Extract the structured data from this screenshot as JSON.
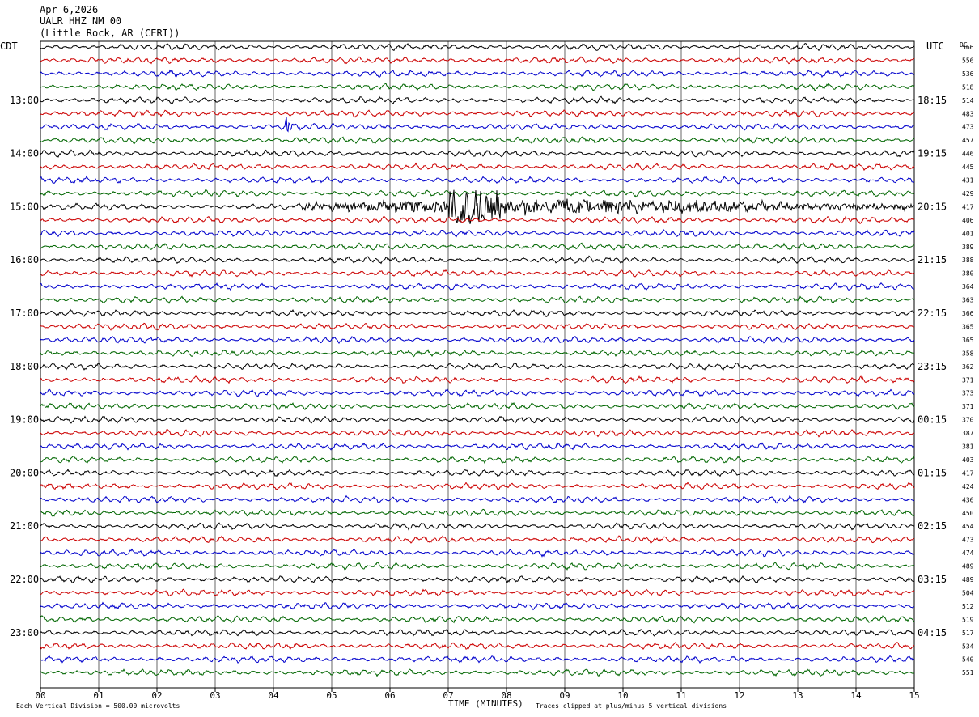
{
  "header": {
    "date": "Apr 6,2026",
    "station": "UALR HHZ NM 00",
    "location": "(Little Rock, AR (CERI))"
  },
  "left_zone": "CDT",
  "right_zone": "UTC",
  "dc_label": "DC",
  "footer": {
    "scale": "Each Vertical Division =  500.00 microvolts",
    "xlabel": "TIME (MINUTES)",
    "clip_note": "Traces clipped at plus/minus 5 vertical divisions"
  },
  "chart_data": {
    "type": "line",
    "title": "Apr 6,2026 UALR HHZ NM 00 (Little Rock, AR (CERI))",
    "xlabel": "TIME (MINUTES)",
    "x_ticks": [
      "00",
      "01",
      "02",
      "03",
      "04",
      "05",
      "06",
      "07",
      "08",
      "09",
      "10",
      "11",
      "12",
      "13",
      "14",
      "15"
    ],
    "xlim": [
      0,
      15
    ],
    "minutes_per_trace": 15,
    "grid": true,
    "trace_colors": [
      "#000000",
      "#cc0000",
      "#0000cc",
      "#006600"
    ],
    "left_hour_labels": [
      "13:00",
      "14:00",
      "15:00",
      "16:00",
      "17:00",
      "18:00",
      "19:00",
      "20:00",
      "21:00",
      "22:00",
      "23:00"
    ],
    "right_hour_labels": [
      "18:15",
      "19:15",
      "20:15",
      "21:15",
      "22:15",
      "23:15",
      "00:15",
      "01:15",
      "02:15",
      "03:15",
      "04:15"
    ],
    "dc_offsets": [
      566,
      556,
      536,
      518,
      514,
      483,
      473,
      457,
      446,
      445,
      431,
      429,
      417,
      406,
      401,
      389,
      388,
      380,
      364,
      363,
      366,
      365,
      365,
      358,
      362,
      371,
      373,
      371,
      370,
      387,
      381,
      403,
      417,
      424,
      436,
      450,
      454,
      473,
      474,
      489,
      489,
      504,
      512,
      519,
      517,
      534,
      540,
      551
    ],
    "events": [
      {
        "trace": 6,
        "minute": 4.2,
        "amplitude": "moderate",
        "duration_min": 0.4
      },
      {
        "trace": 12,
        "minute": 4.5,
        "amplitude": "large",
        "duration_min": 10.5
      }
    ]
  }
}
